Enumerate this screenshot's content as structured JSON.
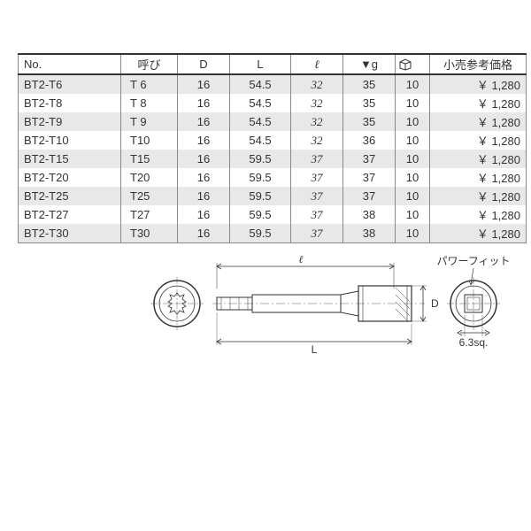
{
  "table": {
    "headers": {
      "no": "No.",
      "yobi": "呼び",
      "d": "D",
      "l": "L",
      "ell": "ℓ",
      "g": "▼g",
      "box": "⬚",
      "price": "小売参考価格"
    },
    "rows": [
      {
        "no": "BT2-T6",
        "yobi": "T 6",
        "d": "16",
        "l": "54.5",
        "ell": "32",
        "g": "35",
        "box": "10",
        "price": "￥ 1,280"
      },
      {
        "no": "BT2-T8",
        "yobi": "T 8",
        "d": "16",
        "l": "54.5",
        "ell": "32",
        "g": "35",
        "box": "10",
        "price": "￥ 1,280"
      },
      {
        "no": "BT2-T9",
        "yobi": "T 9",
        "d": "16",
        "l": "54.5",
        "ell": "32",
        "g": "35",
        "box": "10",
        "price": "￥ 1,280"
      },
      {
        "no": "BT2-T10",
        "yobi": "T10",
        "d": "16",
        "l": "54.5",
        "ell": "32",
        "g": "36",
        "box": "10",
        "price": "￥ 1,280"
      },
      {
        "no": "BT2-T15",
        "yobi": "T15",
        "d": "16",
        "l": "59.5",
        "ell": "37",
        "g": "37",
        "box": "10",
        "price": "￥ 1,280"
      },
      {
        "no": "BT2-T20",
        "yobi": "T20",
        "d": "16",
        "l": "59.5",
        "ell": "37",
        "g": "37",
        "box": "10",
        "price": "￥ 1,280"
      },
      {
        "no": "BT2-T25",
        "yobi": "T25",
        "d": "16",
        "l": "59.5",
        "ell": "37",
        "g": "37",
        "box": "10",
        "price": "￥ 1,280"
      },
      {
        "no": "BT2-T27",
        "yobi": "T27",
        "d": "16",
        "l": "59.5",
        "ell": "37",
        "g": "38",
        "box": "10",
        "price": "￥ 1,280"
      },
      {
        "no": "BT2-T30",
        "yobi": "T30",
        "d": "16",
        "l": "59.5",
        "ell": "37",
        "g": "38",
        "box": "10",
        "price": "￥ 1,280"
      }
    ]
  },
  "diagram": {
    "label_ell": "ℓ",
    "label_L": "L",
    "label_D": "D",
    "label_powerfit": "パワーフィット",
    "label_sq": "6.3sq."
  }
}
